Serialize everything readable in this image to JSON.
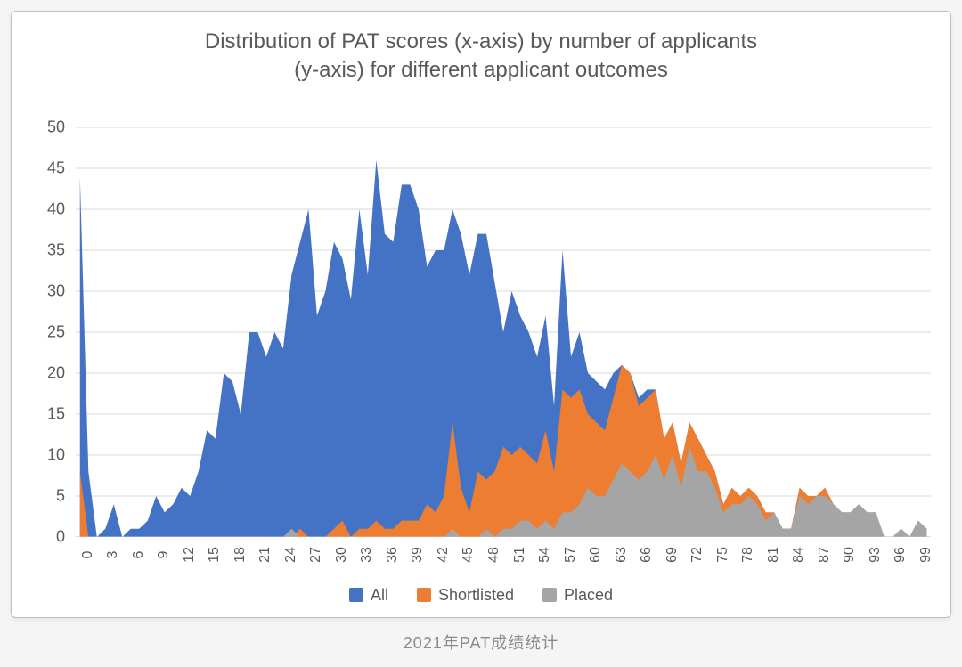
{
  "chart": {
    "type": "area",
    "title": "Distribution of PAT scores (x-axis) by number of applicants\n(y-axis) for different applicant outcomes",
    "title_fontsize": 24,
    "title_color": "#595959",
    "background_color": "#ffffff",
    "card_border_color": "#bfbfbf",
    "grid_color": "#d9d9d9",
    "axis_color": "#bfbfbf",
    "label_color": "#595959",
    "label_fontsize": 18,
    "xtick_fontsize": 16,
    "ylim": [
      0,
      50
    ],
    "ytick_step": 5,
    "xlim": [
      0,
      100
    ],
    "xtick_step": 3,
    "xtick_rotation_deg": -90,
    "x_values": [
      0,
      1,
      2,
      3,
      4,
      5,
      6,
      7,
      8,
      9,
      10,
      11,
      12,
      13,
      14,
      15,
      16,
      17,
      18,
      19,
      20,
      21,
      22,
      23,
      24,
      25,
      26,
      27,
      28,
      29,
      30,
      31,
      32,
      33,
      34,
      35,
      36,
      37,
      38,
      39,
      40,
      41,
      42,
      43,
      44,
      45,
      46,
      47,
      48,
      49,
      50,
      51,
      52,
      53,
      54,
      55,
      56,
      57,
      58,
      59,
      60,
      61,
      62,
      63,
      64,
      65,
      66,
      67,
      68,
      69,
      70,
      71,
      72,
      73,
      74,
      75,
      76,
      77,
      78,
      79,
      80,
      81,
      82,
      83,
      84,
      85,
      86,
      87,
      88,
      89,
      90,
      91,
      92,
      93,
      94,
      95,
      96,
      97,
      98,
      99,
      100
    ],
    "series": [
      {
        "name": "All",
        "color": "#4472c4",
        "values": [
          44,
          8,
          0,
          1,
          4,
          0,
          1,
          1,
          2,
          5,
          3,
          4,
          6,
          5,
          8,
          13,
          12,
          20,
          19,
          15,
          25,
          25,
          22,
          25,
          23,
          32,
          36,
          40,
          27,
          30,
          36,
          34,
          29,
          40,
          32,
          46,
          37,
          36,
          43,
          43,
          40,
          33,
          35,
          35,
          40,
          37,
          32,
          37,
          37,
          31,
          25,
          30,
          27,
          25,
          22,
          27,
          16,
          35,
          22,
          25,
          20,
          19,
          18,
          20,
          21,
          20,
          17,
          18,
          18,
          12,
          14,
          9,
          14,
          12,
          10,
          8,
          4,
          6,
          5,
          6,
          5,
          3,
          3,
          1,
          1,
          6,
          5,
          5,
          6,
          4,
          3,
          3,
          4,
          3,
          3,
          0,
          0,
          1,
          0,
          2,
          1
        ]
      },
      {
        "name": "Shortlisted",
        "color": "#ed7d31",
        "values": [
          8,
          0,
          0,
          0,
          0,
          0,
          0,
          0,
          0,
          0,
          0,
          0,
          0,
          0,
          0,
          0,
          0,
          0,
          0,
          0,
          0,
          0,
          0,
          0,
          0,
          0,
          1,
          0,
          0,
          0,
          1,
          2,
          0,
          1,
          1,
          2,
          1,
          1,
          2,
          2,
          2,
          4,
          3,
          5,
          14,
          6,
          3,
          8,
          7,
          8,
          11,
          10,
          11,
          10,
          9,
          13,
          8,
          18,
          17,
          18,
          15,
          14,
          13,
          17,
          21,
          20,
          16,
          17,
          18,
          12,
          14,
          9,
          14,
          12,
          10,
          8,
          4,
          6,
          5,
          6,
          5,
          3,
          3,
          1,
          1,
          6,
          5,
          5,
          6,
          4,
          3,
          3,
          4,
          3,
          3,
          0,
          0,
          1,
          0,
          2,
          1
        ]
      },
      {
        "name": "Placed",
        "color": "#a5a5a5",
        "values": [
          0,
          0,
          0,
          0,
          0,
          0,
          0,
          0,
          0,
          0,
          0,
          0,
          0,
          0,
          0,
          0,
          0,
          0,
          0,
          0,
          0,
          0,
          0,
          0,
          0,
          1,
          0,
          0,
          0,
          0,
          0,
          0,
          0,
          0,
          0,
          0,
          0,
          0,
          0,
          0,
          0,
          0,
          0,
          0,
          1,
          0,
          0,
          0,
          1,
          0,
          1,
          1,
          2,
          2,
          1,
          2,
          1,
          3,
          3,
          4,
          6,
          5,
          5,
          7,
          9,
          8,
          7,
          8,
          10,
          7,
          10,
          6,
          11,
          8,
          8,
          6,
          3,
          4,
          4,
          5,
          4,
          2,
          3,
          1,
          1,
          5,
          4,
          5,
          5,
          4,
          3,
          3,
          4,
          3,
          3,
          0,
          0,
          1,
          0,
          2,
          1
        ]
      }
    ],
    "legend": {
      "position": "bottom",
      "items": [
        {
          "label": "All",
          "color": "#4472c4"
        },
        {
          "label": "Shortlisted",
          "color": "#ed7d31"
        },
        {
          "label": "Placed",
          "color": "#a5a5a5"
        }
      ]
    },
    "yticks": [
      0,
      5,
      10,
      15,
      20,
      25,
      30,
      35,
      40,
      45,
      50
    ],
    "xticks": [
      0,
      3,
      6,
      9,
      12,
      15,
      18,
      21,
      24,
      27,
      30,
      33,
      36,
      39,
      42,
      45,
      48,
      51,
      54,
      57,
      60,
      63,
      66,
      69,
      72,
      75,
      78,
      81,
      84,
      87,
      90,
      93,
      96,
      99
    ]
  },
  "caption": "2021年PAT成绩统计"
}
